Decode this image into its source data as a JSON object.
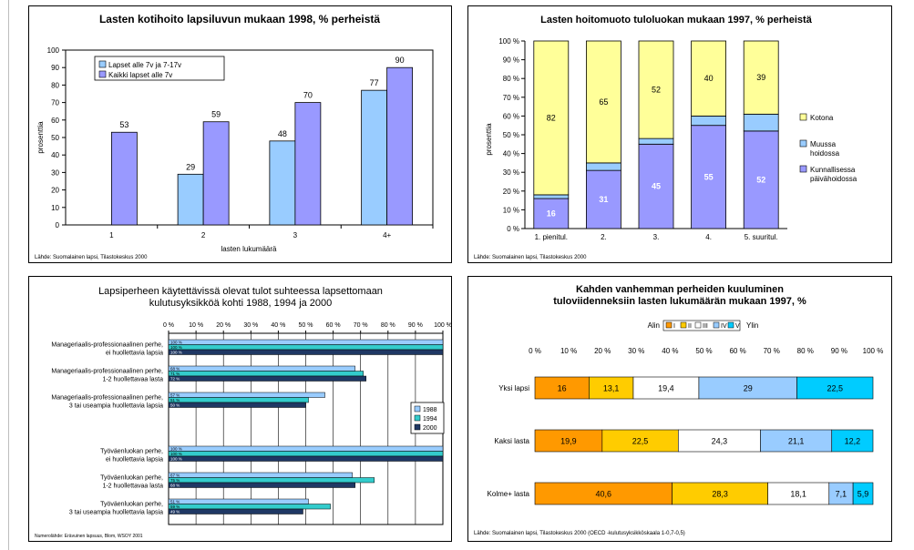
{
  "chart_data": [
    {
      "type": "bar",
      "title": "Lasten kotihoito lapsiluvun mukaan 1998, % perheistä",
      "xlabel": "lasten lukumäärä",
      "ylabel": "prosenttia",
      "source": "Lähde: Suomalainen lapsi, Tilastokeskus 2000",
      "categories": [
        "1",
        "2",
        "3",
        "4+"
      ],
      "ylim": [
        0,
        100
      ],
      "yticks": [
        "0",
        "10",
        "20",
        "30",
        "40",
        "50",
        "60",
        "70",
        "80",
        "90",
        "100"
      ],
      "legend_position": "top-left",
      "series": [
        {
          "name": "Lapset alle 7v ja 7-17v",
          "values": [
            null,
            29,
            48,
            77
          ],
          "color": "#99ccff"
        },
        {
          "name": "Kaikki lapset alle 7v",
          "values": [
            53,
            59,
            70,
            90
          ],
          "color": "#9999ff"
        }
      ]
    },
    {
      "type": "bar",
      "stacked": true,
      "title": "Lasten hoitomuoto tuloluokan mukaan 1997, % perheistä",
      "ylabel": "prosenttia",
      "source": "Lähde: Suomalainen lapsi, Tilastokeskus 2000",
      "categories": [
        "1. pienitul.",
        "2.",
        "3.",
        "4.",
        "5. suuritul."
      ],
      "ylim": [
        0,
        100
      ],
      "yticks": [
        "0 %",
        "10 %",
        "20 %",
        "30 %",
        "40 %",
        "50 %",
        "60 %",
        "70 %",
        "80 %",
        "90 %",
        "100 %"
      ],
      "legend_position": "right",
      "series": [
        {
          "name": "Kunnallisessa päivähoidossa",
          "values": [
            16,
            31,
            45,
            55,
            52
          ],
          "labels": [
            "16",
            "31",
            "45",
            "55",
            "52"
          ],
          "color": "#9999ff"
        },
        {
          "name": "Muussa hoidossa",
          "values": [
            2,
            4,
            3,
            5,
            9
          ],
          "labels": [
            "",
            "",
            "",
            "",
            ""
          ],
          "color": "#99ccff"
        },
        {
          "name": "Kotona",
          "values": [
            82,
            65,
            52,
            40,
            39
          ],
          "labels": [
            "82",
            "65",
            "52",
            "40",
            "39"
          ],
          "color": "#ffff99"
        }
      ]
    },
    {
      "type": "bar",
      "orientation": "horizontal",
      "title_lines": [
        "Lapsiperheen käytettävissä olevat tulot suhteessa lapsettomaan",
        "kulutusyksikköä kohti 1988, 1994 ja 2000"
      ],
      "source": "Numerolähde: Erävuinen lapsuus, Blom, WSOY 2001",
      "xlim": [
        0,
        100
      ],
      "xticks": [
        "0 %",
        "10 %",
        "20 %",
        "30 %",
        "40 %",
        "50 %",
        "60 %",
        "70 %",
        "80 %",
        "90 %",
        "100 %"
      ],
      "legend_position": "right",
      "categories": [
        [
          "Manageriaalis-professionaalinen perhe,",
          "ei huollettavia lapsia"
        ],
        [
          "Manageriaalis-professionaalinen perhe,",
          "1-2 huollettavaa lasta"
        ],
        [
          "Manageriaalis-professionaalinen perhe,",
          "3 tai useampia huollettavia lapsia"
        ],
        [
          "Työväenluokan perhe,",
          "ei huollettavia lapsia"
        ],
        [
          "Työväenluokan perhe,",
          "1-2 huollettavaa lasta"
        ],
        [
          "Työväenluokan perhe,",
          "3 tai useampia huollettavia lapsia"
        ]
      ],
      "series": [
        {
          "name": "1988",
          "values": [
            100,
            68,
            57,
            100,
            67,
            51
          ],
          "labels": [
            "100 %",
            "68 %",
            "57 %",
            "100 %",
            "67 %",
            "51 %"
          ],
          "color": "#99ccff"
        },
        {
          "name": "1994",
          "values": [
            100,
            71,
            51,
            100,
            75,
            59
          ],
          "labels": [
            "100 %",
            "71 %",
            "51 %",
            "100 %",
            "75 %",
            "59 %"
          ],
          "color": "#33cccc"
        },
        {
          "name": "2000",
          "values": [
            100,
            72,
            50,
            100,
            68,
            49
          ],
          "labels": [
            "100 %",
            "72 %",
            "50 %",
            "100 %",
            "68 %",
            "49 %"
          ],
          "color": "#1f3864"
        }
      ]
    },
    {
      "type": "bar",
      "orientation": "horizontal",
      "stacked": true,
      "title_lines": [
        "Kahden vanhemman perheiden kuuluminen",
        "tuloviidenneksiin lasten lukumäärän mukaan 1997, %"
      ],
      "source": "Lähde: Suomalainen lapsi, Tilastokeskus 2000 (OECD -kulutusyksikköskaala 1-0,7-0,5)",
      "legend_prefix": "Alin",
      "legend_suffix": "Ylin",
      "legend_position": "top",
      "xlim": [
        0,
        100
      ],
      "xticks": [
        "0 %",
        "10 %",
        "20 %",
        "30 %",
        "40 %",
        "50 %",
        "60 %",
        "70 %",
        "80 %",
        "90 %",
        "100 %"
      ],
      "categories": [
        "Yksi lapsi",
        "Kaksi lasta",
        "Kolme+ lasta"
      ],
      "series": [
        {
          "name": "I",
          "values": [
            16,
            19.9,
            40.6
          ],
          "labels": [
            "16",
            "19,9",
            "40,6"
          ],
          "color": "#ff9900"
        },
        {
          "name": "II",
          "values": [
            13.1,
            22.5,
            28.3
          ],
          "labels": [
            "13,1",
            "22,5",
            "28,3"
          ],
          "color": "#ffcc00"
        },
        {
          "name": "III",
          "values": [
            19.4,
            24.3,
            18.1
          ],
          "labels": [
            "19,4",
            "24,3",
            "18,1"
          ],
          "color": "#ffffff"
        },
        {
          "name": "IV",
          "values": [
            29,
            21.1,
            7.1
          ],
          "labels": [
            "29",
            "21,1",
            "7,1"
          ],
          "color": "#99ccff"
        },
        {
          "name": "V",
          "values": [
            22.5,
            12.2,
            5.9
          ],
          "labels": [
            "22,5",
            "12,2",
            "5,9"
          ],
          "color": "#00ccff"
        }
      ]
    }
  ]
}
